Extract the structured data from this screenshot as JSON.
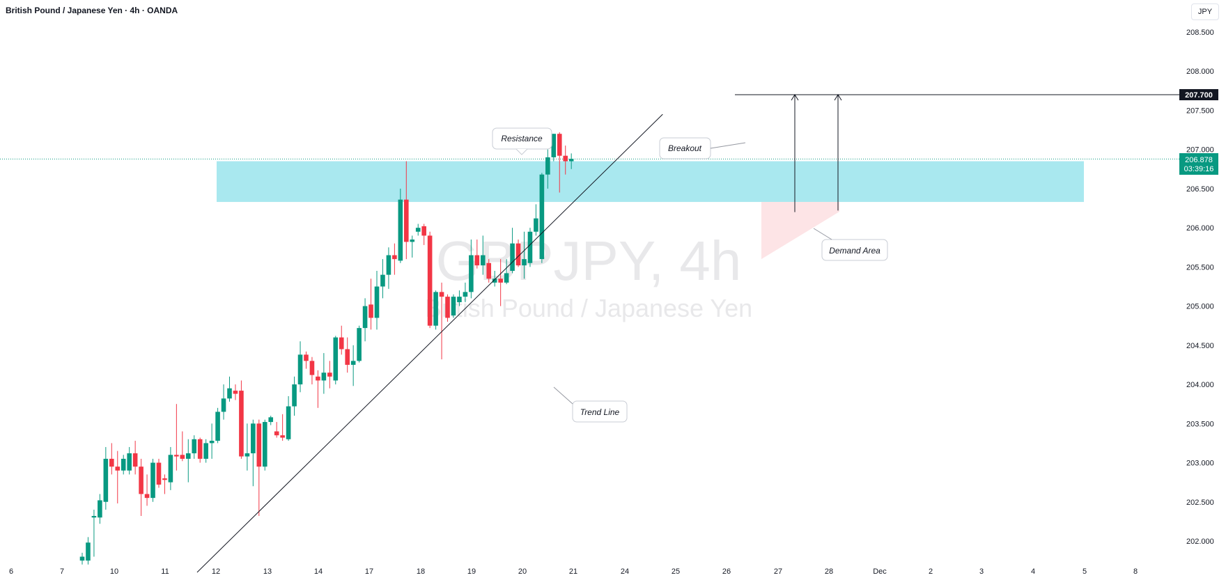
{
  "header": {
    "title": "British Pound / Japanese Yen · 4h · OANDA",
    "currency": "JPY"
  },
  "watermark": {
    "symbol": "GBPJPY, 4h",
    "name": "British Pound / Japanese Yen"
  },
  "price_badges": {
    "target": "207.700",
    "current": "206.878",
    "countdown": "03:39:16"
  },
  "annotations": {
    "resistance": "Resistance",
    "breakout": "Breakout",
    "demand": "Demand Area",
    "trend": "Trend Line"
  },
  "colors": {
    "up": "#089981",
    "down": "#f23645",
    "zone": "#a9e8ef",
    "demand": "#fde4e6",
    "current_price": "#089981"
  },
  "chart_data": {
    "type": "candlestick",
    "title": "British Pound / Japanese Yen · 4h · OANDA",
    "y_axis": {
      "ticks": [
        "208.500",
        "208.000",
        "207.500",
        "207.000",
        "206.500",
        "206.000",
        "205.500",
        "205.000",
        "204.500",
        "204.000",
        "203.500",
        "203.000",
        "202.500",
        "202.000"
      ],
      "range": [
        201.75,
        208.95
      ]
    },
    "x_axis": {
      "ticks": [
        "6",
        "7",
        "10",
        "11",
        "12",
        "13",
        "14",
        "17",
        "18",
        "19",
        "20",
        "21",
        "24",
        "25",
        "26",
        "27",
        "28",
        "Dec",
        "2",
        "3",
        "4",
        "5",
        "8"
      ]
    },
    "candles": [
      {
        "o": 201.75,
        "h": 201.85,
        "l": 201.7,
        "c": 201.8
      },
      {
        "o": 201.75,
        "h": 202.05,
        "l": 201.7,
        "c": 201.98
      },
      {
        "o": 202.3,
        "h": 202.4,
        "l": 201.8,
        "c": 202.32
      },
      {
        "o": 202.3,
        "h": 202.6,
        "l": 202.22,
        "c": 202.52
      },
      {
        "o": 202.5,
        "h": 203.2,
        "l": 202.4,
        "c": 203.05
      },
      {
        "o": 203.05,
        "h": 203.25,
        "l": 202.85,
        "c": 202.95
      },
      {
        "o": 202.95,
        "h": 203.15,
        "l": 202.48,
        "c": 202.9
      },
      {
        "o": 202.9,
        "h": 203.1,
        "l": 202.85,
        "c": 203.05
      },
      {
        "o": 202.9,
        "h": 203.2,
        "l": 202.85,
        "c": 203.12
      },
      {
        "o": 203.12,
        "h": 203.28,
        "l": 202.85,
        "c": 202.95
      },
      {
        "o": 202.95,
        "h": 203.05,
        "l": 202.32,
        "c": 202.6
      },
      {
        "o": 202.6,
        "h": 202.85,
        "l": 202.45,
        "c": 202.55
      },
      {
        "o": 202.55,
        "h": 203.05,
        "l": 202.5,
        "c": 203.0
      },
      {
        "o": 203.0,
        "h": 203.05,
        "l": 202.68,
        "c": 202.72
      },
      {
        "o": 202.8,
        "h": 202.85,
        "l": 202.6,
        "c": 202.78
      },
      {
        "o": 202.75,
        "h": 203.2,
        "l": 202.65,
        "c": 203.1
      },
      {
        "o": 203.1,
        "h": 203.75,
        "l": 202.9,
        "c": 203.08
      },
      {
        "o": 203.1,
        "h": 203.4,
        "l": 203.02,
        "c": 203.05
      },
      {
        "o": 203.05,
        "h": 203.3,
        "l": 202.75,
        "c": 203.12
      },
      {
        "o": 203.12,
        "h": 203.35,
        "l": 203.05,
        "c": 203.3
      },
      {
        "o": 203.3,
        "h": 203.32,
        "l": 203.0,
        "c": 203.05
      },
      {
        "o": 203.05,
        "h": 203.3,
        "l": 203.0,
        "c": 203.25
      },
      {
        "o": 203.25,
        "h": 203.5,
        "l": 203.05,
        "c": 203.28
      },
      {
        "o": 203.28,
        "h": 203.7,
        "l": 203.25,
        "c": 203.65
      },
      {
        "o": 203.65,
        "h": 204.0,
        "l": 203.55,
        "c": 203.82
      },
      {
        "o": 203.82,
        "h": 204.1,
        "l": 203.78,
        "c": 203.95
      },
      {
        "o": 203.92,
        "h": 204.0,
        "l": 203.8,
        "c": 203.88
      },
      {
        "o": 203.92,
        "h": 204.05,
        "l": 203.05,
        "c": 203.08
      },
      {
        "o": 203.08,
        "h": 203.5,
        "l": 202.9,
        "c": 203.12
      },
      {
        "o": 203.12,
        "h": 203.55,
        "l": 202.7,
        "c": 203.5
      },
      {
        "o": 203.5,
        "h": 203.55,
        "l": 202.32,
        "c": 202.95
      },
      {
        "o": 202.95,
        "h": 203.55,
        "l": 202.9,
        "c": 203.52
      },
      {
        "o": 203.52,
        "h": 203.6,
        "l": 203.48,
        "c": 203.58
      },
      {
        "o": 203.4,
        "h": 203.52,
        "l": 203.32,
        "c": 203.35
      },
      {
        "o": 203.35,
        "h": 203.62,
        "l": 203.28,
        "c": 203.32
      },
      {
        "o": 203.3,
        "h": 203.85,
        "l": 203.28,
        "c": 203.72
      },
      {
        "o": 203.72,
        "h": 204.1,
        "l": 203.6,
        "c": 204.0
      },
      {
        "o": 204.0,
        "h": 204.55,
        "l": 203.9,
        "c": 204.38
      },
      {
        "o": 204.38,
        "h": 204.42,
        "l": 204.2,
        "c": 204.3
      },
      {
        "o": 204.3,
        "h": 204.35,
        "l": 204.0,
        "c": 204.12
      },
      {
        "o": 204.1,
        "h": 204.18,
        "l": 203.7,
        "c": 204.05
      },
      {
        "o": 204.05,
        "h": 204.4,
        "l": 203.88,
        "c": 204.15
      },
      {
        "o": 204.15,
        "h": 204.3,
        "l": 203.95,
        "c": 204.1
      },
      {
        "o": 204.05,
        "h": 204.62,
        "l": 204.0,
        "c": 204.6
      },
      {
        "o": 204.6,
        "h": 204.75,
        "l": 204.38,
        "c": 204.45
      },
      {
        "o": 204.45,
        "h": 204.6,
        "l": 204.15,
        "c": 204.25
      },
      {
        "o": 204.25,
        "h": 204.5,
        "l": 203.98,
        "c": 204.3
      },
      {
        "o": 204.3,
        "h": 204.75,
        "l": 204.28,
        "c": 204.72
      },
      {
        "o": 204.72,
        "h": 205.1,
        "l": 204.55,
        "c": 205.0
      },
      {
        "o": 205.02,
        "h": 205.35,
        "l": 204.7,
        "c": 204.85
      },
      {
        "o": 204.85,
        "h": 205.45,
        "l": 204.7,
        "c": 205.25
      },
      {
        "o": 205.25,
        "h": 205.6,
        "l": 205.1,
        "c": 205.4
      },
      {
        "o": 205.4,
        "h": 205.75,
        "l": 205.22,
        "c": 205.65
      },
      {
        "o": 205.65,
        "h": 205.8,
        "l": 205.4,
        "c": 205.6
      },
      {
        "o": 205.58,
        "h": 206.5,
        "l": 205.55,
        "c": 206.36
      },
      {
        "o": 206.36,
        "h": 206.85,
        "l": 205.6,
        "c": 205.82
      },
      {
        "o": 205.82,
        "h": 205.9,
        "l": 205.62,
        "c": 205.85
      },
      {
        "o": 205.95,
        "h": 206.05,
        "l": 205.9,
        "c": 206.0
      },
      {
        "o": 206.02,
        "h": 206.05,
        "l": 205.78,
        "c": 205.9
      },
      {
        "o": 205.9,
        "h": 205.95,
        "l": 204.72,
        "c": 204.75
      },
      {
        "o": 204.75,
        "h": 205.2,
        "l": 204.7,
        "c": 205.18
      },
      {
        "o": 205.18,
        "h": 205.3,
        "l": 204.32,
        "c": 205.12
      },
      {
        "o": 205.12,
        "h": 205.15,
        "l": 204.8,
        "c": 204.85
      },
      {
        "o": 204.88,
        "h": 205.15,
        "l": 204.85,
        "c": 205.12
      },
      {
        "o": 205.05,
        "h": 205.2,
        "l": 205.0,
        "c": 205.12
      },
      {
        "o": 205.12,
        "h": 205.3,
        "l": 205.05,
        "c": 205.18
      },
      {
        "o": 205.18,
        "h": 205.85,
        "l": 205.1,
        "c": 205.65
      },
      {
        "o": 205.65,
        "h": 205.85,
        "l": 205.48,
        "c": 205.52
      },
      {
        "o": 205.52,
        "h": 205.9,
        "l": 205.4,
        "c": 205.65
      },
      {
        "o": 205.55,
        "h": 205.6,
        "l": 205.3,
        "c": 205.35
      },
      {
        "o": 205.3,
        "h": 205.45,
        "l": 205.25,
        "c": 205.35
      },
      {
        "o": 205.35,
        "h": 205.6,
        "l": 205.0,
        "c": 205.3
      },
      {
        "o": 205.3,
        "h": 205.6,
        "l": 205.28,
        "c": 205.42
      },
      {
        "o": 205.45,
        "h": 206.0,
        "l": 205.42,
        "c": 205.8
      },
      {
        "o": 205.8,
        "h": 205.85,
        "l": 205.5,
        "c": 205.52
      },
      {
        "o": 205.52,
        "h": 205.95,
        "l": 205.35,
        "c": 205.6
      },
      {
        "o": 205.55,
        "h": 206.0,
        "l": 205.5,
        "c": 205.95
      },
      {
        "o": 205.95,
        "h": 206.3,
        "l": 205.9,
        "c": 206.12
      },
      {
        "o": 205.6,
        "h": 206.7,
        "l": 205.55,
        "c": 206.68
      },
      {
        "o": 206.68,
        "h": 207.0,
        "l": 206.5,
        "c": 206.9
      },
      {
        "o": 206.9,
        "h": 207.2,
        "l": 206.85,
        "c": 207.2
      },
      {
        "o": 207.2,
        "h": 207.22,
        "l": 206.45,
        "c": 206.92
      },
      {
        "o": 206.92,
        "h": 207.05,
        "l": 206.68,
        "c": 206.85
      },
      {
        "o": 206.85,
        "h": 206.95,
        "l": 206.75,
        "c": 206.88
      }
    ],
    "resistance_zone": [
      206.33,
      206.85
    ],
    "target_level": 207.7,
    "current_price": 206.878,
    "trend_line": {
      "from_candle": 19.5,
      "from_price": 201.6,
      "to_candle": 98.5,
      "to_price": 207.45
    }
  }
}
